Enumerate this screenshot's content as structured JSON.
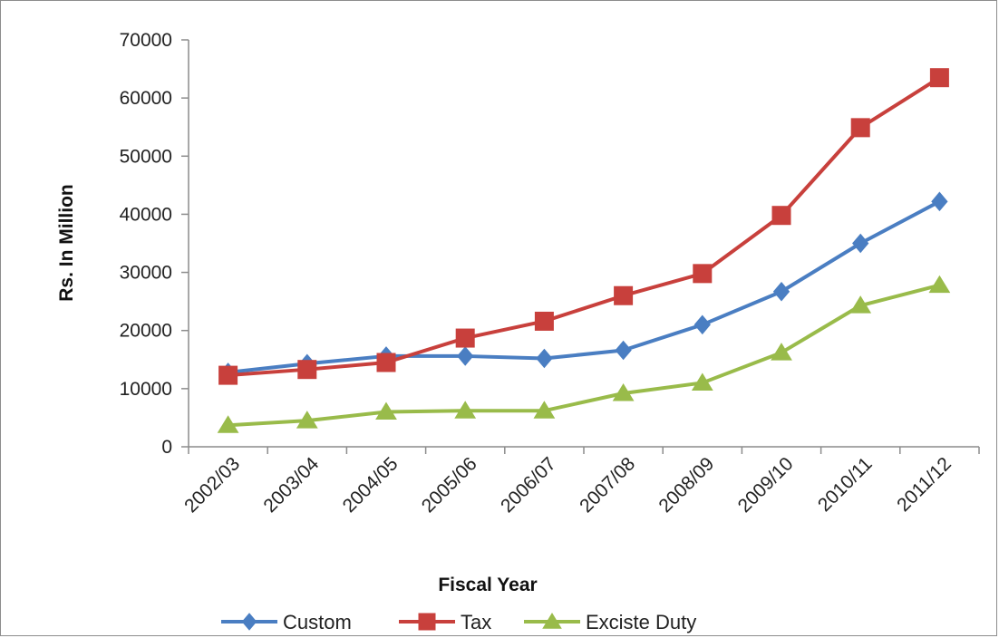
{
  "colors": {
    "Custom": "#4a7ec2",
    "Tax": "#c8403c",
    "Exciste Duty": "#99bb4a",
    "axis": "#8c8c8c"
  },
  "chart_data": {
    "type": "line",
    "title": "",
    "xlabel": "Fiscal Year",
    "ylabel": "Rs. In Million",
    "ylim": [
      0,
      70000
    ],
    "yticks": [
      0,
      10000,
      20000,
      30000,
      40000,
      50000,
      60000,
      70000
    ],
    "grid": false,
    "legend_position": "bottom",
    "categories": [
      "2002/03",
      "2003/04",
      "2004/05",
      "2005/06",
      "2006/07",
      "2007/08",
      "2008/09",
      "2009/10",
      "2010/11",
      "2011/12"
    ],
    "series": [
      {
        "name": "Custom",
        "marker": "diamond",
        "color": "#4a7ec2",
        "values": [
          12800,
          14300,
          15600,
          15600,
          15200,
          16600,
          21000,
          26700,
          35000,
          42200
        ]
      },
      {
        "name": "Tax",
        "marker": "square",
        "color": "#c8403c",
        "values": [
          12300,
          13300,
          14500,
          18700,
          21600,
          26000,
          29800,
          39800,
          54900,
          63500
        ]
      },
      {
        "name": "Exciste Duty",
        "marker": "triangle",
        "color": "#99bb4a",
        "values": [
          3700,
          4500,
          6000,
          6200,
          6200,
          9200,
          11000,
          16200,
          24300,
          27800
        ]
      }
    ]
  }
}
